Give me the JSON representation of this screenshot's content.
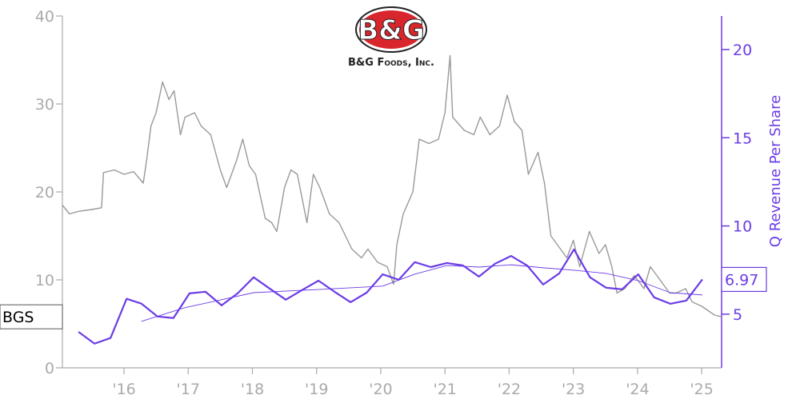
{
  "chart_data": {
    "type": "line",
    "logo_mark": "B&G",
    "logo_caption": "B&G Foods, Inc.",
    "y2label": "Q Revenue Per Share",
    "xlim": [
      2015.04,
      2025.31
    ],
    "xticks": [
      {
        "value": 2016,
        "label": "'16"
      },
      {
        "value": 2017,
        "label": "'17"
      },
      {
        "value": 2018,
        "label": "'18"
      },
      {
        "value": 2019,
        "label": "'19"
      },
      {
        "value": 2020,
        "label": "'20"
      },
      {
        "value": 2021,
        "label": "'21"
      },
      {
        "value": 2022,
        "label": "'22"
      },
      {
        "value": 2023,
        "label": "'23"
      },
      {
        "value": 2024,
        "label": "'24"
      },
      {
        "value": 2025,
        "label": "'25"
      }
    ],
    "ylim": [
      0,
      40
    ],
    "yticks": [
      0,
      10,
      20,
      30,
      40
    ],
    "y2lim": [
      1.96,
      21.9
    ],
    "y2ticks": [
      5,
      10,
      15,
      20
    ],
    "series": [
      {
        "name": "BGS",
        "color": "#999999",
        "x": [
          2015.04,
          2015.15,
          2015.3,
          2015.5,
          2015.65,
          2015.68,
          2015.85,
          2016.0,
          2016.15,
          2016.3,
          2016.35,
          2016.42,
          2016.5,
          2016.6,
          2016.7,
          2016.78,
          2016.88,
          2016.95,
          2017.1,
          2017.2,
          2017.35,
          2017.5,
          2017.6,
          2017.75,
          2017.85,
          2017.95,
          2018.05,
          2018.2,
          2018.3,
          2018.38,
          2018.5,
          2018.6,
          2018.7,
          2018.85,
          2018.95,
          2019.05,
          2019.2,
          2019.35,
          2019.45,
          2019.55,
          2019.7,
          2019.8,
          2019.95,
          2020.1,
          2020.2,
          2020.25,
          2020.35,
          2020.5,
          2020.6,
          2020.75,
          2020.9,
          2021.0,
          2021.08,
          2021.12,
          2021.3,
          2021.45,
          2021.55,
          2021.7,
          2021.85,
          2021.97,
          2022.08,
          2022.2,
          2022.3,
          2022.45,
          2022.55,
          2022.65,
          2022.75,
          2022.9,
          2023.0,
          2023.1,
          2023.25,
          2023.4,
          2023.5,
          2023.6,
          2023.68,
          2023.8,
          2023.95,
          2024.1,
          2024.2,
          2024.35,
          2024.5,
          2024.6,
          2024.75,
          2024.85,
          2025.0,
          2025.1,
          2025.2,
          2025.31
        ],
        "values": [
          18.5,
          17.5,
          17.8,
          18.0,
          18.2,
          22.2,
          22.5,
          22.0,
          22.3,
          21.0,
          23.5,
          27.5,
          29.0,
          32.5,
          30.5,
          31.5,
          26.5,
          28.5,
          29.0,
          27.5,
          26.5,
          22.5,
          20.5,
          23.5,
          26.0,
          23.0,
          22.0,
          17.0,
          16.5,
          15.5,
          20.5,
          22.5,
          22.0,
          16.5,
          22.0,
          20.5,
          17.5,
          16.5,
          15.0,
          13.5,
          12.5,
          13.5,
          12.0,
          11.5,
          9.5,
          14.0,
          17.5,
          20.0,
          26.0,
          25.5,
          26.0,
          29.0,
          35.5,
          28.5,
          27.0,
          26.5,
          28.5,
          26.5,
          27.5,
          31.0,
          28.0,
          27.0,
          22.0,
          24.5,
          21.0,
          15.0,
          14.0,
          12.5,
          14.5,
          11.5,
          15.5,
          13.0,
          14.0,
          11.5,
          8.5,
          9.0,
          10.5,
          9.0,
          11.5,
          10.0,
          8.5,
          8.5,
          9.0,
          7.5,
          7.0,
          6.5,
          6.0,
          5.8
        ]
      },
      {
        "name": "Q Revenue Per Share",
        "color": "#6b3ce6",
        "axis": "y2",
        "width": 2.2,
        "x": [
          2015.29,
          2015.54,
          2015.79,
          2016.04,
          2016.27,
          2016.52,
          2016.77,
          2017.02,
          2017.27,
          2017.52,
          2017.77,
          2018.02,
          2018.27,
          2018.52,
          2018.77,
          2019.03,
          2019.28,
          2019.53,
          2019.78,
          2020.03,
          2020.28,
          2020.53,
          2020.78,
          2021.03,
          2021.28,
          2021.53,
          2021.78,
          2022.03,
          2022.28,
          2022.53,
          2022.78,
          2023.01,
          2023.26,
          2023.51,
          2023.76,
          2024.01,
          2024.26,
          2024.51,
          2024.76,
          2025.01
        ],
        "values": [
          4.0,
          3.33,
          3.65,
          5.87,
          5.6,
          4.87,
          4.78,
          6.18,
          6.27,
          5.5,
          6.18,
          7.09,
          6.45,
          5.82,
          6.36,
          6.9,
          6.27,
          5.68,
          6.22,
          7.26,
          6.95,
          7.95,
          7.67,
          7.9,
          7.76,
          7.13,
          7.86,
          8.3,
          7.76,
          6.68,
          7.31,
          8.67,
          7.09,
          6.5,
          6.41,
          7.26,
          5.95,
          5.59,
          5.77,
          6.97
        ]
      },
      {
        "color": "#6b3ce6",
        "axis": "y2",
        "width": 0.9,
        "x": [
          2016.27,
          2016.94,
          2018.02,
          2019.03,
          2020.03,
          2020.53,
          2021.03,
          2021.53,
          2022.03,
          2022.53,
          2023.01,
          2023.51,
          2024.01,
          2024.51,
          2025.01
        ],
        "values": [
          4.59,
          5.36,
          6.22,
          6.4,
          6.59,
          7.27,
          7.76,
          7.67,
          7.8,
          7.63,
          7.49,
          7.31,
          6.9,
          6.22,
          6.09
        ]
      }
    ]
  }
}
